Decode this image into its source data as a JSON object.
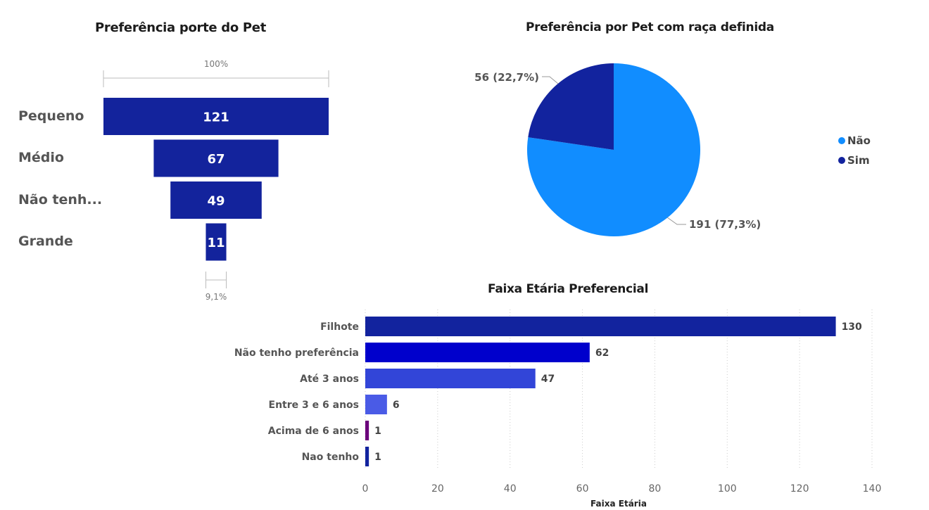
{
  "chart_data": [
    {
      "type": "funnel",
      "title": "Preferência porte do Pet",
      "categories": [
        "Pequeno",
        "Médio",
        "Não tenh...",
        "Grande"
      ],
      "values": [
        121,
        67,
        49,
        11
      ],
      "top_percent_label": "100%",
      "bottom_percent_label": "9,1%",
      "bar_color": "#13239C"
    },
    {
      "type": "pie",
      "title": "Preferência por Pet com raça definida",
      "slices": [
        {
          "name": "Não",
          "value": 191,
          "label": "191 (77,3%)",
          "color": "#118DFF"
        },
        {
          "name": "Sim",
          "value": 56,
          "label": "56 (22,7%)",
          "color": "#12239E"
        }
      ],
      "legend_position": "right"
    },
    {
      "type": "bar",
      "orientation": "horizontal",
      "title": "Faixa Etária Preferencial",
      "xlabel": "Faixa Etária",
      "categories": [
        "Filhote",
        "Não tenho preferência",
        "Até 3 anos",
        "Entre 3 e 6 anos",
        "Acima de 6 anos",
        "Nao tenho"
      ],
      "values": [
        130,
        62,
        47,
        6,
        1,
        1
      ],
      "colors": [
        "#12239E",
        "#0000CC",
        "#3245D8",
        "#4A5BE6",
        "#6B007B",
        "#12239E"
      ],
      "xlim": [
        0,
        140
      ],
      "xticks": [
        "0",
        "20",
        "40",
        "60",
        "80",
        "100",
        "120",
        "140"
      ],
      "grid": true
    }
  ]
}
